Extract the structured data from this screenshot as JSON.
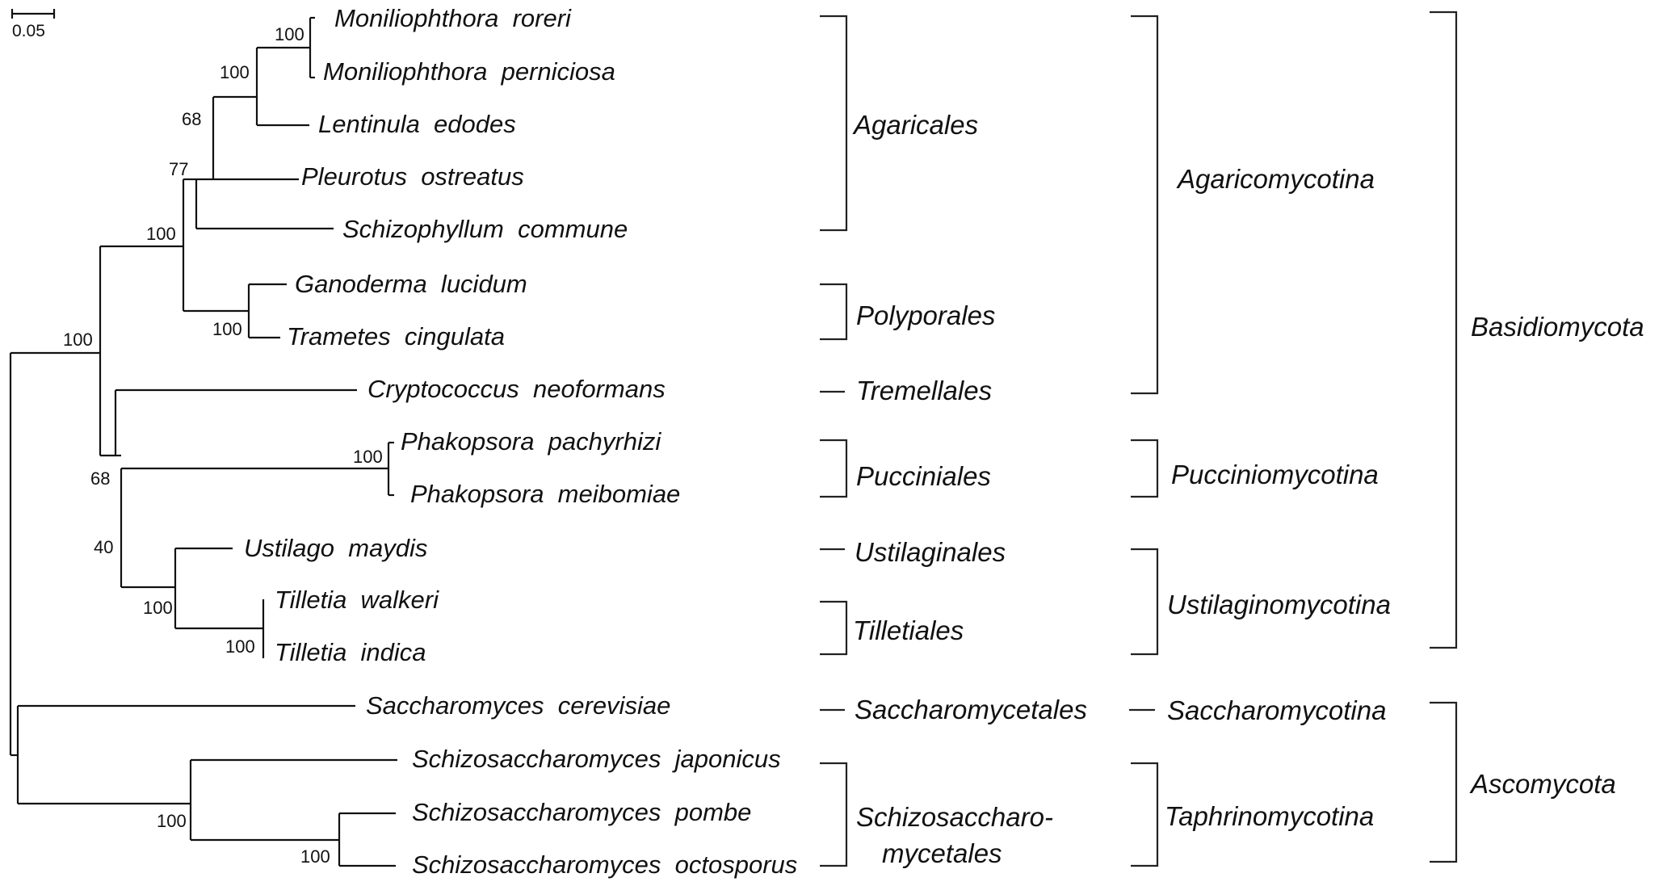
{
  "scale_bar": {
    "label": "0.05"
  },
  "taxa": [
    "Moniliophthora  roreri",
    "Moniliophthora  perniciosa",
    "Lentinula  edodes",
    "Pleurotus  ostreatus",
    "Schizophyllum  commune",
    "Ganoderma  lucidum",
    "Trametes  cingulata",
    "Cryptococcus  neoformans",
    "Phakopsora  pachyrhizi",
    "Phakopsora  meibomiae",
    "Ustilago  maydis",
    "Tilletia  walkeri",
    "Tilletia  indica",
    "Saccharomyces  cerevisiae",
    "Schizosaccharomyces  japonicus",
    "Schizosaccharomyces  pombe",
    "Schizosaccharomyces  octosporus"
  ],
  "support_values": [
    "100",
    "100",
    "68",
    "77",
    "100",
    "100",
    "100",
    "100",
    "68",
    "40",
    "100",
    "100",
    "100",
    "100"
  ],
  "orders": [
    {
      "label": "Agaricales"
    },
    {
      "label": "Polyporales"
    },
    {
      "label": "Tremellales"
    },
    {
      "label": "Pucciniales"
    },
    {
      "label": "Ustilaginales"
    },
    {
      "label": "Tilletiales"
    },
    {
      "label": "Saccharomycetales"
    },
    {
      "label_lines": [
        "Schizosaccharo-",
        "mycetales"
      ]
    }
  ],
  "subphyla": [
    "Agaricomycotina",
    "Pucciniomycotina",
    "Ustilaginomycotina",
    "Saccharomycotina",
    "Taphrinomycotina"
  ],
  "phyla": [
    "Basidiomycota",
    "Ascomycota"
  ]
}
